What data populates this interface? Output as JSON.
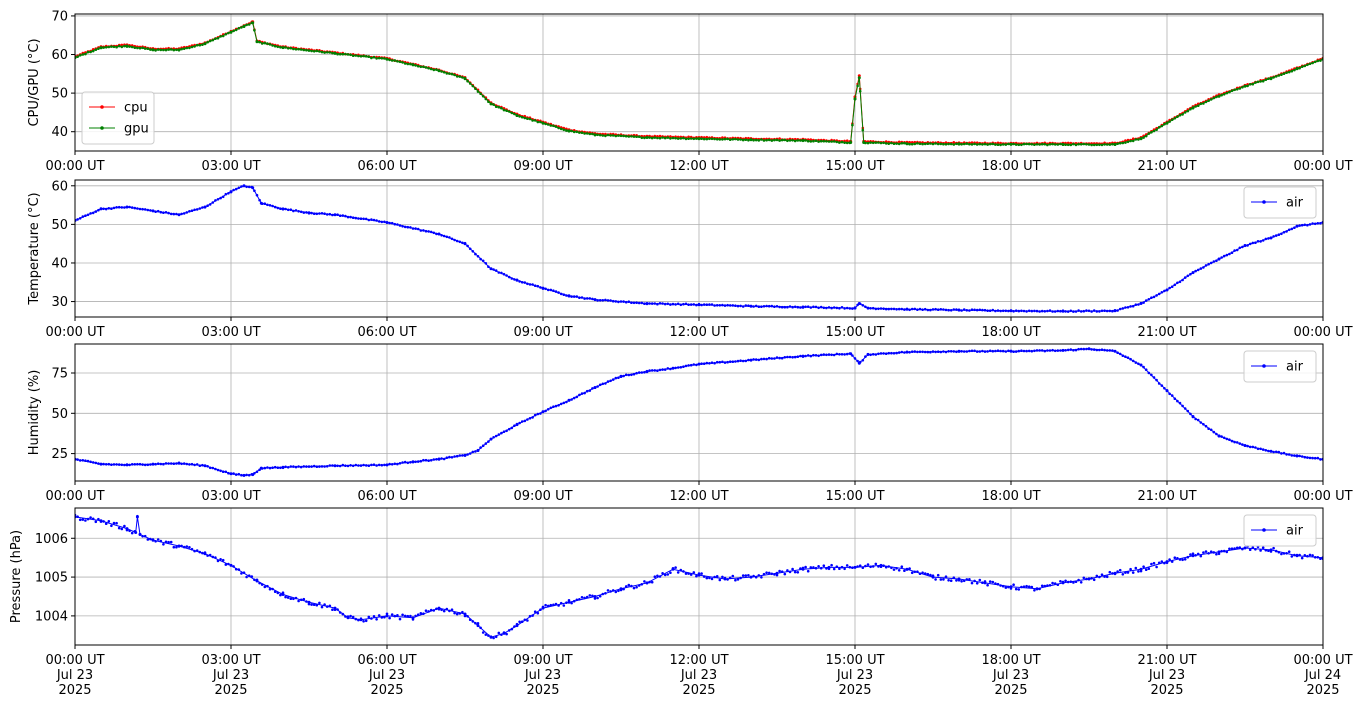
{
  "chart_data": [
    {
      "type": "line",
      "ylabel": "CPU/GPU (°C)",
      "ylim": [
        35,
        70.5
      ],
      "yticks": [
        40,
        50,
        60,
        70
      ],
      "xticks": [
        "00:00 UT",
        "03:00 UT",
        "06:00 UT",
        "09:00 UT",
        "12:00 UT",
        "15:00 UT",
        "18:00 UT",
        "21:00 UT",
        "00:00 UT"
      ],
      "grid": true,
      "legend_position": "lower left",
      "series": [
        {
          "name": "cpu",
          "color": "#ff0000",
          "x": [
            "00:00",
            "00:30",
            "01:00",
            "01:30",
            "02:00",
            "02:30",
            "03:00",
            "03:15",
            "03:25",
            "03:30",
            "04:00",
            "05:00",
            "06:00",
            "06:30",
            "07:00",
            "07:30",
            "08:00",
            "08:30",
            "09:00",
            "09:30",
            "10:00",
            "11:00",
            "12:00",
            "13:00",
            "14:00",
            "14:55",
            "15:00",
            "15:05",
            "15:10",
            "16:00",
            "17:00",
            "18:00",
            "19:00",
            "20:00",
            "20:30",
            "21:00",
            "21:30",
            "22:00",
            "22:30",
            "23:00",
            "23:30",
            "24:00"
          ],
          "y": [
            59.5,
            62,
            62.5,
            61.5,
            61.5,
            63,
            66,
            67.5,
            68.5,
            63.5,
            62,
            60.5,
            59,
            57.5,
            56,
            54,
            47.5,
            44.5,
            42.5,
            40.5,
            39.5,
            38.8,
            38.5,
            38.2,
            38,
            37.5,
            49,
            54.5,
            37.5,
            37.2,
            37.1,
            37,
            37,
            37,
            38.5,
            42.5,
            46.5,
            49.5,
            52,
            54,
            56.5,
            59
          ]
        },
        {
          "name": "gpu",
          "color": "#008000",
          "x": [
            "00:00",
            "00:30",
            "01:00",
            "01:30",
            "02:00",
            "02:30",
            "03:00",
            "03:15",
            "03:25",
            "03:30",
            "04:00",
            "05:00",
            "06:00",
            "06:30",
            "07:00",
            "07:30",
            "08:00",
            "08:30",
            "09:00",
            "09:30",
            "10:00",
            "11:00",
            "12:00",
            "13:00",
            "14:00",
            "14:55",
            "15:00",
            "15:05",
            "15:10",
            "16:00",
            "17:00",
            "18:00",
            "19:00",
            "20:00",
            "20:30",
            "21:00",
            "21:30",
            "22:00",
            "22:30",
            "23:00",
            "23:30",
            "24:00"
          ],
          "y": [
            59.2,
            61.8,
            62.2,
            61.2,
            61.2,
            62.8,
            65.8,
            67.3,
            68.2,
            63.3,
            61.8,
            60.3,
            58.8,
            57.3,
            55.8,
            53.8,
            47.2,
            44.2,
            42.2,
            40.2,
            39.2,
            38.5,
            38.2,
            37.9,
            37.7,
            37.2,
            48.5,
            54,
            37.2,
            36.9,
            36.8,
            36.7,
            36.7,
            36.7,
            38.2,
            42.2,
            46.2,
            49.2,
            51.8,
            53.8,
            56.3,
            58.8
          ]
        }
      ]
    },
    {
      "type": "line",
      "ylabel": "Temperature (°C)",
      "ylim": [
        26,
        61.5
      ],
      "yticks": [
        30,
        40,
        50,
        60
      ],
      "xticks": [
        "00:00 UT",
        "03:00 UT",
        "06:00 UT",
        "09:00 UT",
        "12:00 UT",
        "15:00 UT",
        "18:00 UT",
        "21:00 UT",
        "00:00 UT"
      ],
      "grid": true,
      "legend_position": "upper right",
      "series": [
        {
          "name": "air",
          "color": "#0000ff",
          "x": [
            "00:00",
            "00:30",
            "01:00",
            "01:30",
            "02:00",
            "02:30",
            "03:00",
            "03:15",
            "03:25",
            "03:35",
            "04:00",
            "04:30",
            "05:00",
            "06:00",
            "07:00",
            "07:30",
            "08:00",
            "08:30",
            "09:00",
            "09:30",
            "10:00",
            "11:00",
            "12:00",
            "13:00",
            "14:00",
            "15:00",
            "15:05",
            "15:15",
            "16:00",
            "17:00",
            "18:00",
            "19:00",
            "20:00",
            "20:30",
            "21:00",
            "21:30",
            "22:00",
            "22:30",
            "23:00",
            "23:30",
            "24:00"
          ],
          "y": [
            51,
            54,
            54.5,
            53.5,
            52.5,
            54.5,
            58.5,
            60,
            59.5,
            55.5,
            54,
            53,
            52.5,
            50.5,
            47.5,
            45,
            38.5,
            35.5,
            33.5,
            31.5,
            30.5,
            29.5,
            29.2,
            28.8,
            28.6,
            28.3,
            29.5,
            28.3,
            28,
            27.8,
            27.6,
            27.5,
            27.6,
            29.5,
            33,
            37.5,
            41,
            44.5,
            46.5,
            49.5,
            50.5
          ]
        }
      ]
    },
    {
      "type": "line",
      "ylabel": "Humidity (%)",
      "ylim": [
        8,
        93
      ],
      "yticks": [
        25,
        50,
        75
      ],
      "xticks": [
        "00:00 UT",
        "03:00 UT",
        "06:00 UT",
        "09:00 UT",
        "12:00 UT",
        "15:00 UT",
        "18:00 UT",
        "21:00 UT",
        "00:00 UT"
      ],
      "grid": true,
      "legend_position": "upper right",
      "series": [
        {
          "name": "air",
          "color": "#0000ff",
          "x": [
            "00:00",
            "00:30",
            "01:00",
            "01:30",
            "02:00",
            "02:30",
            "03:00",
            "03:15",
            "03:25",
            "03:35",
            "04:00",
            "05:00",
            "06:00",
            "06:30",
            "07:00",
            "07:30",
            "07:45",
            "08:00",
            "08:30",
            "09:00",
            "09:30",
            "10:00",
            "10:30",
            "11:00",
            "11:30",
            "12:00",
            "13:00",
            "14:00",
            "14:55",
            "15:05",
            "15:15",
            "16:00",
            "17:00",
            "18:00",
            "19:00",
            "19:30",
            "20:00",
            "20:30",
            "21:00",
            "21:30",
            "22:00",
            "22:30",
            "23:00",
            "23:30",
            "24:00"
          ],
          "y": [
            21.5,
            18.5,
            18,
            18.5,
            19,
            17.5,
            12.5,
            11.5,
            12,
            16,
            16.5,
            17.5,
            18,
            20,
            21.5,
            24,
            27,
            34,
            43,
            51,
            58,
            66,
            73,
            76,
            78,
            80.5,
            83,
            85.5,
            87,
            81,
            86.5,
            88,
            88.5,
            88.5,
            89,
            90,
            88.5,
            80,
            64,
            48,
            36,
            30,
            26.5,
            23.5,
            21.5
          ]
        }
      ]
    },
    {
      "type": "line",
      "ylabel": "Pressure (hPa)",
      "ylim": [
        1003.25,
        1006.78
      ],
      "yticks": [
        1004,
        1005,
        1006
      ],
      "xticks": [
        "00:00 UT\nJul 23\n2025",
        "03:00 UT\nJul 23\n2025",
        "06:00 UT\nJul 23\n2025",
        "09:00 UT\nJul 23\n2025",
        "12:00 UT\nJul 23\n2025",
        "15:00 UT\nJul 23\n2025",
        "18:00 UT\nJul 23\n2025",
        "21:00 UT\nJul 23\n2025",
        "00:00 UT\nJul 24\n2025"
      ],
      "grid": true,
      "legend_position": "upper right",
      "series": [
        {
          "name": "air",
          "color": "#0000ff",
          "x": [
            "00:00",
            "00:30",
            "01:00",
            "01:10",
            "01:12",
            "01:15",
            "01:30",
            "02:00",
            "02:30",
            "03:00",
            "03:30",
            "04:00",
            "04:30",
            "05:00",
            "05:15",
            "05:30",
            "06:00",
            "06:30",
            "07:00",
            "07:30",
            "07:45",
            "08:00",
            "08:15",
            "08:30",
            "09:00",
            "09:30",
            "10:00",
            "10:30",
            "11:00",
            "11:30",
            "12:00",
            "12:30",
            "13:00",
            "13:30",
            "14:00",
            "14:30",
            "15:00",
            "15:30",
            "16:00",
            "16:30",
            "17:00",
            "17:30",
            "18:00",
            "18:30",
            "19:00",
            "19:30",
            "20:00",
            "20:30",
            "21:00",
            "21:30",
            "22:00",
            "22:30",
            "23:00",
            "23:30",
            "24:00"
          ],
          "y": [
            1006.55,
            1006.45,
            1006.25,
            1006.15,
            1006.55,
            1006.1,
            1005.95,
            1005.8,
            1005.6,
            1005.3,
            1004.9,
            1004.55,
            1004.35,
            1004.2,
            1003.95,
            1003.9,
            1004.0,
            1003.95,
            1004.2,
            1004.05,
            1003.75,
            1003.45,
            1003.55,
            1003.75,
            1004.2,
            1004.35,
            1004.5,
            1004.7,
            1004.85,
            1005.2,
            1005.05,
            1004.95,
            1005.0,
            1005.1,
            1005.2,
            1005.25,
            1005.25,
            1005.3,
            1005.2,
            1005.0,
            1004.95,
            1004.85,
            1004.75,
            1004.7,
            1004.85,
            1004.95,
            1005.1,
            1005.2,
            1005.4,
            1005.55,
            1005.65,
            1005.75,
            1005.7,
            1005.55,
            1005.5
          ]
        }
      ]
    }
  ]
}
